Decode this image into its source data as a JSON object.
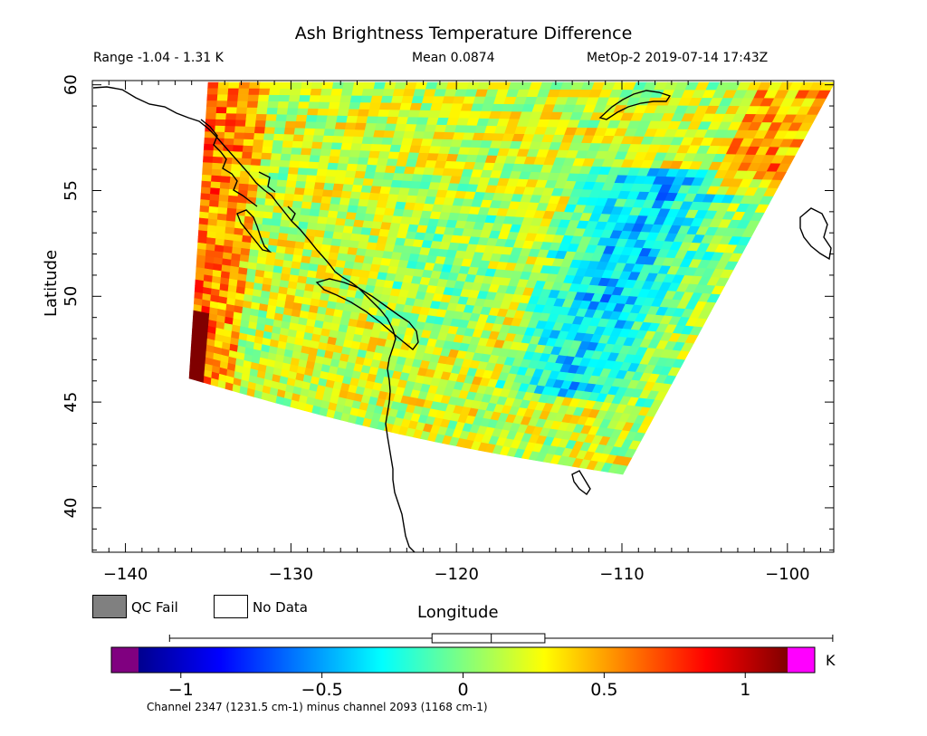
{
  "header": {
    "title": "Ash Brightness Temperature Difference",
    "range": "Range -1.04 - 1.31 K",
    "mean": "Mean 0.0874",
    "satellite_time": "MetOp-2 2019-07-14 17:43Z"
  },
  "axes": {
    "ylabel": "Latitude",
    "xlabel": "Longitude",
    "lat_ticks": [
      60,
      55,
      50,
      45,
      40
    ],
    "lon_ticks": [
      -140,
      -130,
      -120,
      -110,
      -100
    ],
    "lat_tick_labels": [
      "60",
      "55",
      "50",
      "45",
      "40"
    ],
    "lon_tick_labels": [
      "−140",
      "−130",
      "−120",
      "−110",
      "−100"
    ]
  },
  "legend": {
    "qc_fail": "QC Fail",
    "no_data": "No Data",
    "qc_color": "#808080"
  },
  "colorbar": {
    "min": -1.15,
    "max": 1.15,
    "tick_values": [
      -1,
      -0.5,
      0,
      0.5,
      1
    ],
    "tick_labels": [
      "−1",
      "−0.5",
      "0",
      "0.5",
      "1"
    ],
    "unit": "K",
    "under_color": "#800080",
    "over_color": "#ff00ff",
    "box_q1": -0.11,
    "box_median": 0.1,
    "box_q3": 0.29,
    "whisker_min": -1.04,
    "whisker_max": 1.31
  },
  "footnote": "Channel 2347 (1231.5 cm-1) minus channel 2093 (1168 cm-1)",
  "colors": {
    "land_outline": "#000000",
    "background": "#ffffff"
  }
}
